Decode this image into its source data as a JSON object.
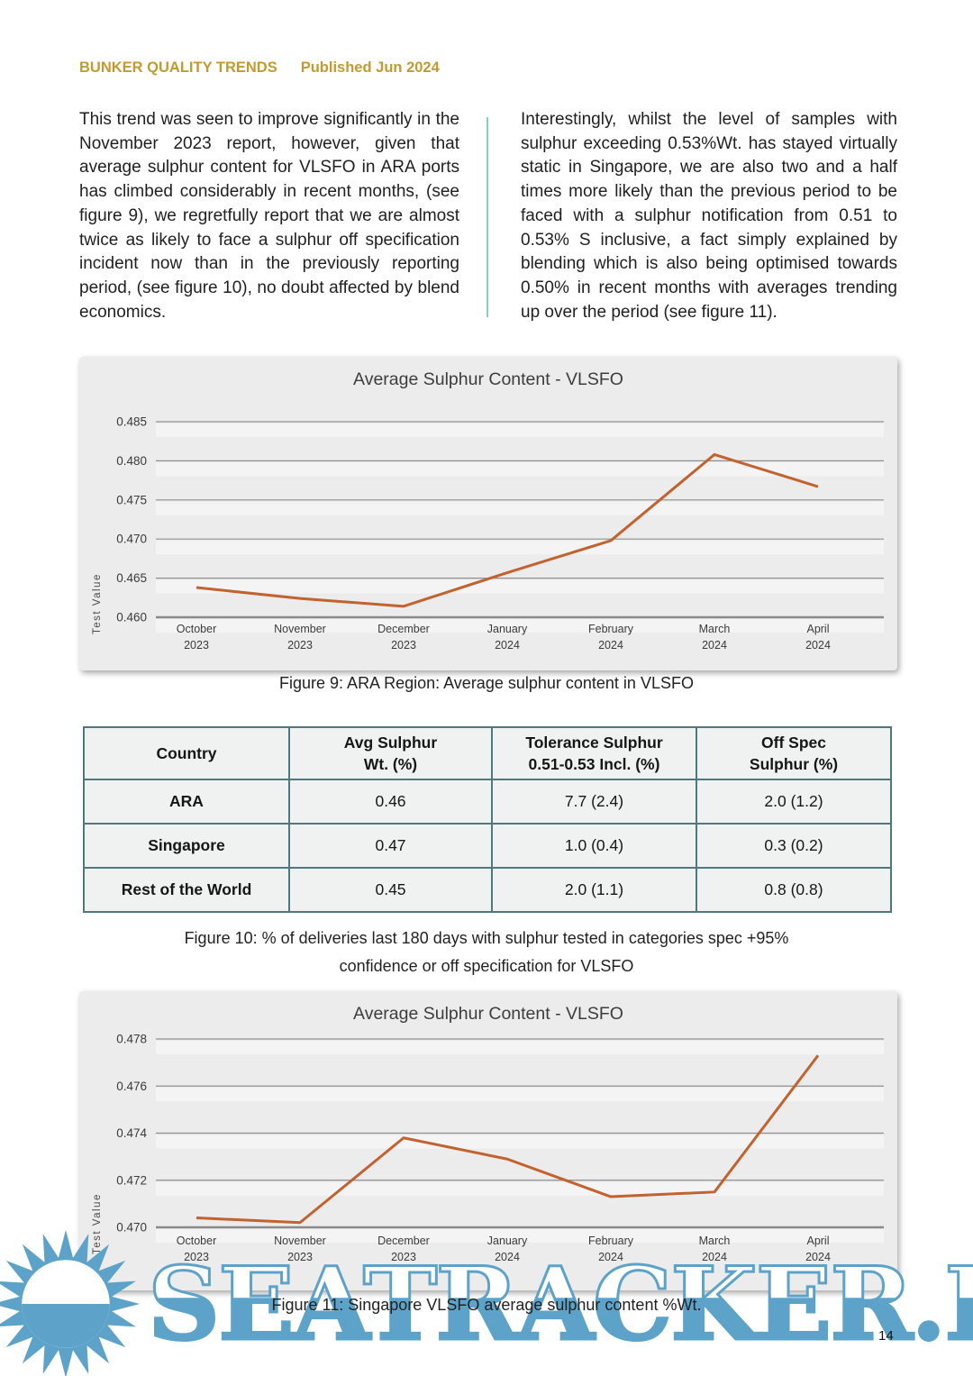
{
  "page": {
    "number": "14"
  },
  "header": {
    "title": "BUNKER QUALITY TRENDS",
    "published": "Published Jun 2024",
    "accent_color": "#c49a2f"
  },
  "body": {
    "left_paragraph": "This trend was seen to improve significantly in the November 2023 report, however, given that average sulphur content for VLSFO in ARA ports has climbed considerably in recent months, (see figure 9), we regretfully report that we are almost twice as likely to face a sulphur off specification incident now than in the previously reporting period, (see figure 10), no doubt affected by blend economics.",
    "right_paragraph": "Interestingly, whilst the level of samples with sulphur exceeding 0.53%Wt. has stayed virtually static in Singapore, we are also two and a half times more likely than the previous period to be faced with a sulphur notification from 0.51 to 0.53% S inclusive, a fact simply explained by blending which is also being optimised towards 0.50% in recent months with averages trending up over the period (see figure 11)."
  },
  "chart_data": [
    {
      "type": "line",
      "title": "Average Sulphur Content - VLSFO",
      "ylabel": "Test Value",
      "xlabel": "",
      "categories": [
        "October",
        "November",
        "December",
        "January",
        "February",
        "March",
        "April"
      ],
      "years": [
        "2023",
        "2023",
        "2023",
        "2024",
        "2024",
        "2024",
        "2024"
      ],
      "values": [
        0.4638,
        0.4624,
        0.4614,
        0.4657,
        0.4698,
        0.4808,
        0.4767
      ],
      "yticks": [
        0.46,
        0.465,
        0.47,
        0.475,
        0.48,
        0.485
      ],
      "ylim": [
        0.46,
        0.485
      ],
      "grid": true,
      "legend": "none",
      "line_color": "#c2622f",
      "caption": "Figure 9: ARA Region: Average sulphur content in VLSFO"
    },
    {
      "type": "line",
      "title": "Average Sulphur Content - VLSFO",
      "ylabel": "Test Value",
      "xlabel": "",
      "categories": [
        "October",
        "November",
        "December",
        "January",
        "February",
        "March",
        "April"
      ],
      "years": [
        "2023",
        "2023",
        "2023",
        "2024",
        "2024",
        "2024",
        "2024"
      ],
      "values": [
        0.4704,
        0.4702,
        0.4738,
        0.4729,
        0.4713,
        0.4715,
        0.4773
      ],
      "yticks": [
        0.47,
        0.472,
        0.474,
        0.476,
        0.478
      ],
      "ylim": [
        0.47,
        0.478
      ],
      "grid": true,
      "legend": "none",
      "line_color": "#c2622f",
      "caption": "Figure 11: Singapore VLSFO average sulphur content %Wt."
    }
  ],
  "table": {
    "border_color": "#4d797e",
    "headers": [
      "Country",
      "Avg Sulphur\nWt. (%)",
      "Tolerance Sulphur\n0.51-0.53 Incl. (%)",
      "Off Spec\nSulphur (%)"
    ],
    "rows": [
      [
        "ARA",
        "0.46",
        "7.7 (2.4)",
        "2.0 (1.2)"
      ],
      [
        "Singapore",
        "0.47",
        "1.0 (0.4)",
        "0.3 (0.2)"
      ],
      [
        "Rest of the World",
        "0.45",
        "2.0 (1.1)",
        "0.8 (0.8)"
      ]
    ],
    "caption": "Figure 10: % of deliveries last 180 days with sulphur tested in categories spec +95%\nconfidence or off specification for VLSFO"
  },
  "watermark": {
    "text": "SEATRACKER.RU",
    "color": "#5da3c9",
    "icon": "sun-icon"
  }
}
